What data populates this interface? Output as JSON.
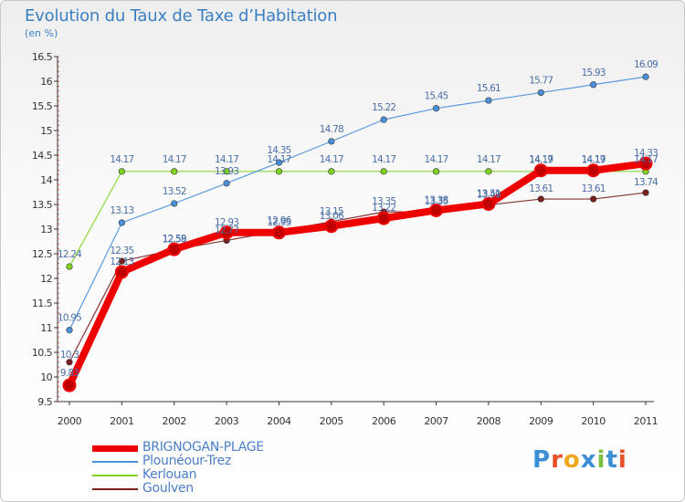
{
  "title": "Evolution du Taux de Taxe d’Habitation",
  "unit": "(en %)",
  "logo_text": "Proxiti",
  "chart_data": {
    "type": "line",
    "title": "Evolution du Taux de Taxe d’Habitation",
    "ylabel": "(en %)",
    "xlabel": "",
    "categories": [
      "2000",
      "2001",
      "2002",
      "2003",
      "2004",
      "2005",
      "2006",
      "2007",
      "2008",
      "2009",
      "2010",
      "2011"
    ],
    "ylim": [
      9.5,
      16.5
    ],
    "yticks": [
      "9.5",
      "10",
      "10.5",
      "11",
      "11.5",
      "12",
      "12.5",
      "13",
      "13.5",
      "14",
      "14.5",
      "15",
      "15.5",
      "16",
      "16.5"
    ],
    "grid": false,
    "legend_position": "bottom-left",
    "series": [
      {
        "name": "BRIGNOGAN-PLAGE",
        "color": "#ee0000",
        "values": [
          9.83,
          12.13,
          12.59,
          12.93,
          12.93,
          13.06,
          13.22,
          13.38,
          13.51,
          14.19,
          14.19,
          14.33
        ],
        "labels": [
          "9.83",
          "12.13",
          "12.59",
          "12.93",
          "12.93",
          "13.06",
          "13.22",
          "13.38",
          "13.51",
          "14.19",
          "14.19",
          "14.33"
        ]
      },
      {
        "name": "Plounéour-Trez",
        "color": "#4a90d9",
        "values": [
          10.95,
          13.13,
          13.52,
          13.93,
          14.35,
          14.78,
          15.22,
          15.45,
          15.61,
          15.77,
          15.93,
          16.09
        ],
        "labels": [
          "10.95",
          "13.13",
          "13.52",
          "13.93",
          "14.35",
          "14.78",
          "15.22",
          "15.45",
          "15.61",
          "15.77",
          "15.93",
          "16.09"
        ]
      },
      {
        "name": "Kerlouan",
        "color": "#7ed321",
        "values": [
          12.24,
          14.17,
          14.17,
          14.17,
          14.17,
          14.17,
          14.17,
          14.17,
          14.17,
          14.17,
          14.17,
          14.17
        ],
        "labels": [
          "12.24",
          "14.17",
          "14.17",
          "14.17",
          "14.17",
          "14.17",
          "14.17",
          "14.17",
          "14.17",
          "14.17",
          "14.17",
          "14.17"
        ]
      },
      {
        "name": "Goulven",
        "color": "#7a1e1e",
        "values": [
          10.3,
          12.35,
          12.58,
          12.77,
          12.96,
          13.15,
          13.35,
          13.35,
          13.49,
          13.61,
          13.61,
          13.74
        ],
        "labels": [
          "10.3",
          "12.35",
          "12.58",
          "12.77",
          "12.96",
          "13.15",
          "13.35",
          "13.35",
          "13.49",
          "13.61",
          "13.61",
          "13.74"
        ]
      }
    ]
  },
  "colors": {
    "title": "#3a7fc4",
    "axis": "#333333",
    "label_text": "#4a6fa8"
  }
}
